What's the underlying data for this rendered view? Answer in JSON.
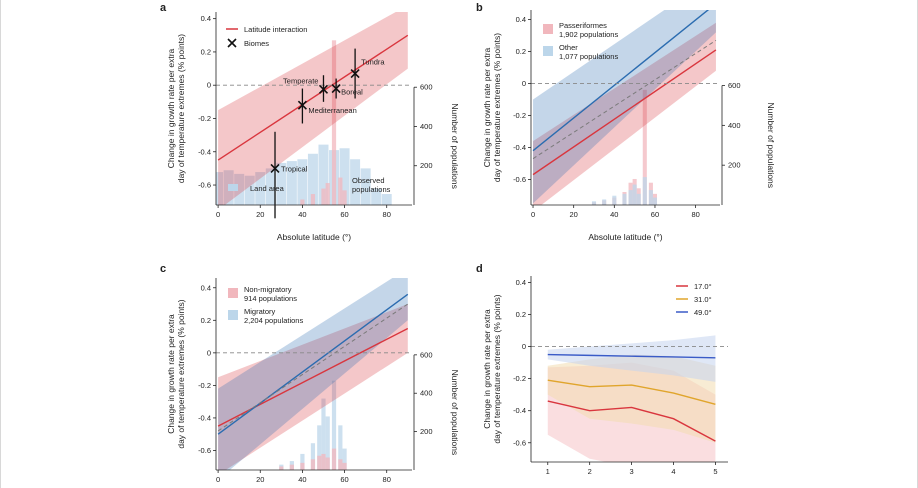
{
  "chart_data": [
    {
      "panel": "a",
      "type": "line",
      "ylabel": "Change in growth rate per extra day of temperature extremes (% points)",
      "y2label": "Number of populations",
      "xlabel": "Absolute latitude (°)",
      "xlim": [
        -1,
        92
      ],
      "ylim": [
        -0.72,
        0.44
      ],
      "xticks": [
        0,
        20,
        40,
        60,
        80
      ],
      "yticks": [
        0.4,
        0.2,
        0,
        -0.2,
        -0.4,
        -0.6
      ],
      "y2ticks": [
        200,
        400,
        600
      ],
      "y2range": [
        0,
        1000
      ],
      "legend": [
        {
          "label": "Latitude interaction",
          "color": "#d9363e",
          "kind": "line"
        },
        {
          "label": "Biomes",
          "color": "#111111",
          "kind": "cross"
        }
      ],
      "series": [
        {
          "color": "#d9363e",
          "x": [
            0,
            90
          ],
          "y": [
            -0.45,
            0.3
          ],
          "ci_lower": [
            -0.75,
            0.1
          ],
          "ci_upper": [
            -0.15,
            0.48
          ]
        }
      ],
      "biomes": [
        {
          "label": "Tropical",
          "x": 27,
          "y": -0.5,
          "lo": -0.8,
          "hi": -0.28
        },
        {
          "label": "Mediterranean",
          "x": 40,
          "y": -0.12,
          "lo": -0.23,
          "hi": -0.02
        },
        {
          "label": "Temperate",
          "x": 50,
          "y": -0.025,
          "lo": -0.1,
          "hi": 0.06
        },
        {
          "label": "Boreal",
          "x": 56,
          "y": -0.02,
          "lo": -0.08,
          "hi": 0.04
        },
        {
          "label": "Tundra",
          "x": 65,
          "y": 0.07,
          "lo": -0.08,
          "hi": 0.22
        }
      ],
      "bars": {
        "land_area": {
          "label": "Land area",
          "color": "#bcd6ea",
          "x": [
            0,
            5,
            10,
            15,
            20,
            25,
            30,
            35,
            40,
            45,
            50,
            55,
            60,
            65,
            70,
            75,
            80
          ],
          "values": [
            180,
            190,
            170,
            160,
            180,
            200,
            230,
            240,
            250,
            280,
            330,
            300,
            310,
            250,
            200,
            90,
            60
          ]
        },
        "observed": {
          "label": "Observed populations",
          "color": "#f1b7bd",
          "x": [
            40,
            45,
            50,
            52,
            55,
            58,
            60
          ],
          "values": [
            30,
            60,
            90,
            120,
            900,
            150,
            80
          ]
        }
      }
    },
    {
      "panel": "b",
      "type": "line",
      "ylabel": "Change in growth rate per extra day of temperature extremes (% points)",
      "y2label": "Number of populations",
      "xlabel": "Absolute latitude (°)",
      "xlim": [
        -1,
        92
      ],
      "ylim": [
        -0.76,
        0.46
      ],
      "xticks": [
        0,
        20,
        40,
        60,
        80
      ],
      "yticks": [
        0.4,
        0.2,
        0,
        -0.2,
        -0.4,
        -0.6
      ],
      "y2ticks": [
        200,
        400,
        600
      ],
      "y2range": [
        0,
        1000
      ],
      "legend": [
        {
          "label": "Passeriformes",
          "sublabel": "1,902 populations",
          "color": "#f1b7bd",
          "kind": "box"
        },
        {
          "label": "Other",
          "sublabel": "1,077 populations",
          "color": "#bcd6ea",
          "kind": "box"
        }
      ],
      "series": [
        {
          "color": "#d9363e",
          "x": [
            0,
            90
          ],
          "y": [
            -0.57,
            0.21
          ],
          "ci_lower": [
            -0.8,
            0.08
          ],
          "ci_upper": [
            -0.36,
            0.38
          ]
        },
        {
          "color": "#2b6cb0",
          "x": [
            0,
            90
          ],
          "y": [
            -0.42,
            0.5
          ],
          "ci_lower": [
            -0.75,
            0.32
          ],
          "ci_upper": [
            -0.1,
            0.68
          ]
        },
        {
          "color": "#7a7a7a",
          "dashed": true,
          "x": [
            0,
            90
          ],
          "y": [
            -0.47,
            0.27
          ]
        }
      ],
      "bars": {
        "observed": {
          "color": "#f1b7bd",
          "x": [
            30,
            35,
            40,
            45,
            48,
            50,
            52,
            55,
            58,
            60
          ],
          "values": [
            15,
            25,
            40,
            70,
            120,
            140,
            90,
            620,
            120,
            60
          ]
        },
        "other": {
          "color": "#bcd6ea",
          "x": [
            30,
            35,
            40,
            45,
            48,
            50,
            52,
            55,
            58,
            60
          ],
          "values": [
            20,
            30,
            50,
            60,
            80,
            110,
            60,
            150,
            80,
            40
          ]
        }
      }
    },
    {
      "panel": "c",
      "type": "line",
      "ylabel": "Change in growth rate per extra day of temperature extremes (% points)",
      "y2label": "Number of populations",
      "xlabel": "",
      "xlim": [
        -1,
        92
      ],
      "ylim": [
        -0.72,
        0.46
      ],
      "xticks": [
        0,
        20,
        40,
        60,
        80
      ],
      "yticks": [
        0.4,
        0.2,
        0,
        -0.2,
        -0.4,
        -0.6
      ],
      "y2ticks": [
        200,
        400,
        600
      ],
      "y2range": [
        0,
        1000
      ],
      "legend": [
        {
          "label": "Non-migratory",
          "sublabel": "914 populations",
          "color": "#f1b7bd",
          "kind": "box"
        },
        {
          "label": "Migratory",
          "sublabel": "2,204 populations",
          "color": "#bcd6ea",
          "kind": "box"
        }
      ],
      "series": [
        {
          "color": "#d9363e",
          "x": [
            0,
            90
          ],
          "y": [
            -0.45,
            0.15
          ],
          "ci_lower": [
            -0.75,
            0.0
          ],
          "ci_upper": [
            -0.15,
            0.3
          ]
        },
        {
          "color": "#2b6cb0",
          "x": [
            0,
            90
          ],
          "y": [
            -0.5,
            0.36
          ],
          "ci_lower": [
            -0.78,
            0.2
          ],
          "ci_upper": [
            -0.22,
            0.52
          ]
        },
        {
          "color": "#7a7a7a",
          "dashed": true,
          "x": [
            0,
            90
          ],
          "y": [
            -0.48,
            0.3
          ]
        }
      ],
      "bars": {
        "migratory": {
          "color": "#bcd6ea",
          "x": [
            30,
            35,
            40,
            45,
            48,
            50,
            52,
            55,
            58,
            60
          ],
          "values": [
            30,
            50,
            90,
            150,
            250,
            400,
            300,
            500,
            250,
            120
          ]
        },
        "nonmigratory": {
          "color": "#f1b7bd",
          "x": [
            30,
            35,
            40,
            45,
            48,
            50,
            52,
            55,
            58,
            60
          ],
          "values": [
            20,
            30,
            40,
            60,
            80,
            90,
            70,
            120,
            60,
            40
          ]
        }
      }
    },
    {
      "panel": "d",
      "type": "line",
      "ylabel": "Change in growth rate per extra day of temperature extremes (% points)",
      "xlim": [
        0.6,
        5.3
      ],
      "ylim": [
        -0.72,
        0.44
      ],
      "xticks": [
        1,
        2,
        3,
        4,
        5
      ],
      "yticks": [
        0.4,
        0.2,
        0,
        -0.2,
        -0.4,
        -0.6
      ],
      "legend": [
        {
          "label": "17.0°",
          "color": "#d9363e"
        },
        {
          "label": "31.0°",
          "color": "#e0a52c"
        },
        {
          "label": "49.0°",
          "color": "#3a5bc7"
        }
      ],
      "series": [
        {
          "name": "17.0°",
          "color": "#d9363e",
          "fill": "#f6c3c6",
          "x": [
            1,
            2,
            3,
            4,
            5
          ],
          "y": [
            -0.34,
            -0.4,
            -0.38,
            -0.45,
            -0.59
          ],
          "ci_lower": [
            -0.55,
            -0.7,
            -0.75,
            -0.8,
            -0.85
          ],
          "ci_upper": [
            -0.13,
            -0.12,
            -0.1,
            -0.15,
            -0.3
          ]
        },
        {
          "name": "31.0°",
          "color": "#e0a52c",
          "fill": "#f3ddb0",
          "x": [
            1,
            2,
            3,
            4,
            5
          ],
          "y": [
            -0.21,
            -0.25,
            -0.24,
            -0.29,
            -0.36
          ],
          "ci_lower": [
            -0.3,
            -0.45,
            -0.48,
            -0.52,
            -0.6
          ],
          "ci_upper": [
            -0.12,
            -0.08,
            -0.05,
            -0.06,
            -0.12
          ]
        },
        {
          "name": "49.0°",
          "color": "#3a5bc7",
          "fill": "#c4d3ee",
          "x": [
            1,
            2,
            3,
            4,
            5
          ],
          "y": [
            -0.05,
            -0.055,
            -0.06,
            -0.065,
            -0.07
          ],
          "ci_lower": [
            -0.08,
            -0.12,
            -0.15,
            -0.18,
            -0.22
          ],
          "ci_upper": [
            -0.02,
            0.0,
            0.02,
            0.04,
            0.07
          ]
        }
      ]
    }
  ]
}
